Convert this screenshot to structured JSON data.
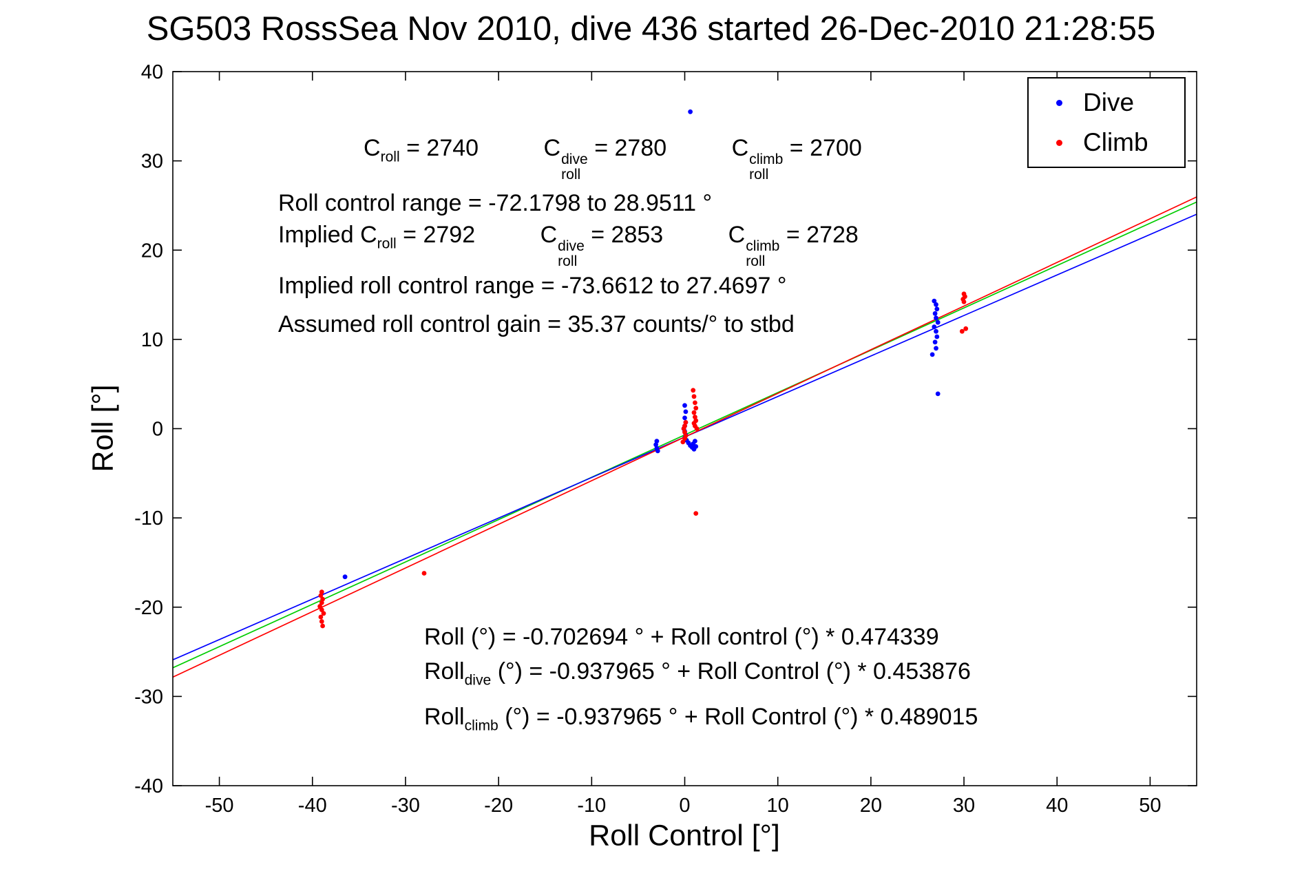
{
  "title": "SG503 RossSea Nov 2010, dive 436 started 26-Dec-2010 21:28:55",
  "colors": {
    "dive": "#0000ff",
    "climb": "#ff0000",
    "combined_fit": "#00cc00",
    "axes": "#000000"
  },
  "legend": {
    "dive": "Dive",
    "climb": "Climb"
  },
  "annotations": {
    "cal": {
      "c": {
        "base": "C",
        "sub": "roll",
        "eq": " = 2740"
      },
      "c_dive": {
        "base": "C",
        "sup": "dive",
        "sub": "roll",
        "eq": " = 2780"
      },
      "c_climb": {
        "base": "C",
        "sup": "climb",
        "sub": "roll",
        "eq": " = 2700"
      }
    },
    "roll_control_range": "Roll control range = -72.1798 to 28.9511 °",
    "implied": {
      "prefix": "Implied ",
      "c": {
        "base": "C",
        "sub": "roll",
        "eq": " = 2792"
      },
      "c_dive": {
        "base": "C",
        "sup": "dive",
        "sub": "roll",
        "eq": " = 2853"
      },
      "c_climb": {
        "base": "C",
        "sup": "climb",
        "sub": "roll",
        "eq": " = 2728"
      }
    },
    "implied_range": "Implied roll control range = -73.6612 to 27.4697 °",
    "assumed_gain": "Assumed roll control gain = 35.37 counts/° to stbd",
    "fit_combined": "Roll (°) = -0.702694 ° + Roll control (°) * 0.474339",
    "fit_dive": {
      "base": "Roll",
      "sub": "dive",
      "rest": " (°) = -0.937965 ° + Roll Control (°) * 0.453876"
    },
    "fit_climb": {
      "base": "Roll",
      "sub": "climb",
      "rest": " (°) = -0.937965 ° + Roll Control (°) * 0.489015"
    }
  },
  "chart_data": {
    "type": "scatter",
    "title": "SG503 RossSea Nov 2010, dive 436 started 26-Dec-2010 21:28:55",
    "xlabel": "Roll Control [°]",
    "ylabel": "Roll [°]",
    "xlim": [
      -55,
      55
    ],
    "ylim": [
      -40,
      40
    ],
    "xticks": [
      -50,
      -40,
      -30,
      -20,
      -10,
      0,
      10,
      20,
      30,
      40,
      50
    ],
    "yticks": [
      -40,
      -30,
      -20,
      -10,
      0,
      10,
      20,
      30,
      40
    ],
    "grid": false,
    "legend_position": "top-right",
    "series": [
      {
        "name": "Dive",
        "color": "#0000ff",
        "points": [
          [
            0.6,
            35.5
          ],
          [
            0.0,
            2.6
          ],
          [
            0.1,
            1.9
          ],
          [
            0.0,
            1.2
          ],
          [
            0.1,
            0.7
          ],
          [
            0.0,
            0.3
          ],
          [
            -0.1,
            0.0
          ],
          [
            0.0,
            -0.3
          ],
          [
            0.1,
            -0.7
          ],
          [
            0.0,
            -1.0
          ],
          [
            0.2,
            -1.3
          ],
          [
            0.4,
            -1.6
          ],
          [
            0.6,
            -1.9
          ],
          [
            0.8,
            -2.1
          ],
          [
            1.0,
            -2.3
          ],
          [
            1.2,
            -2.0
          ],
          [
            0.9,
            -1.7
          ],
          [
            1.1,
            -1.4
          ],
          [
            -3.0,
            -1.4
          ],
          [
            -3.1,
            -1.8
          ],
          [
            -3.0,
            -2.2
          ],
          [
            -2.9,
            -2.5
          ],
          [
            26.8,
            14.3
          ],
          [
            27.0,
            13.9
          ],
          [
            27.1,
            13.4
          ],
          [
            26.9,
            12.9
          ],
          [
            27.0,
            12.4
          ],
          [
            27.2,
            11.9
          ],
          [
            26.8,
            11.4
          ],
          [
            27.0,
            10.9
          ],
          [
            27.1,
            10.3
          ],
          [
            26.9,
            9.7
          ],
          [
            27.0,
            9.0
          ],
          [
            26.6,
            8.3
          ],
          [
            27.2,
            3.9
          ],
          [
            -36.5,
            -16.6
          ]
        ]
      },
      {
        "name": "Climb",
        "color": "#ff0000",
        "points": [
          [
            0.9,
            4.3
          ],
          [
            1.0,
            3.6
          ],
          [
            1.1,
            2.9
          ],
          [
            1.2,
            2.3
          ],
          [
            1.0,
            1.8
          ],
          [
            1.1,
            1.3
          ],
          [
            1.2,
            0.9
          ],
          [
            1.0,
            0.6
          ],
          [
            1.1,
            0.3
          ],
          [
            1.3,
            0.0
          ],
          [
            0.1,
            0.7
          ],
          [
            0.0,
            0.3
          ],
          [
            -0.1,
            0.0
          ],
          [
            0.0,
            -0.4
          ],
          [
            0.1,
            -0.8
          ],
          [
            0.0,
            -1.1
          ],
          [
            -0.2,
            -1.5
          ],
          [
            1.2,
            -9.5
          ],
          [
            30.0,
            15.1
          ],
          [
            30.1,
            14.8
          ],
          [
            29.9,
            14.5
          ],
          [
            30.0,
            14.2
          ],
          [
            30.2,
            11.2
          ],
          [
            29.8,
            10.9
          ],
          [
            -39.0,
            -18.3
          ],
          [
            -39.1,
            -18.7
          ],
          [
            -38.9,
            -19.1
          ],
          [
            -39.0,
            -19.5
          ],
          [
            -39.2,
            -19.9
          ],
          [
            -39.0,
            -20.3
          ],
          [
            -38.8,
            -20.7
          ],
          [
            -39.1,
            -21.1
          ],
          [
            -39.0,
            -21.6
          ],
          [
            -38.9,
            -22.1
          ],
          [
            -28.0,
            -16.2
          ]
        ]
      }
    ],
    "fit_lines": [
      {
        "name": "combined",
        "color": "#00cc00",
        "intercept": -0.702694,
        "slope": 0.474339
      },
      {
        "name": "dive",
        "color": "#0000ff",
        "intercept": -0.937965,
        "slope": 0.453876
      },
      {
        "name": "climb",
        "color": "#ff0000",
        "intercept": -0.937965,
        "slope": 0.489015
      }
    ]
  }
}
